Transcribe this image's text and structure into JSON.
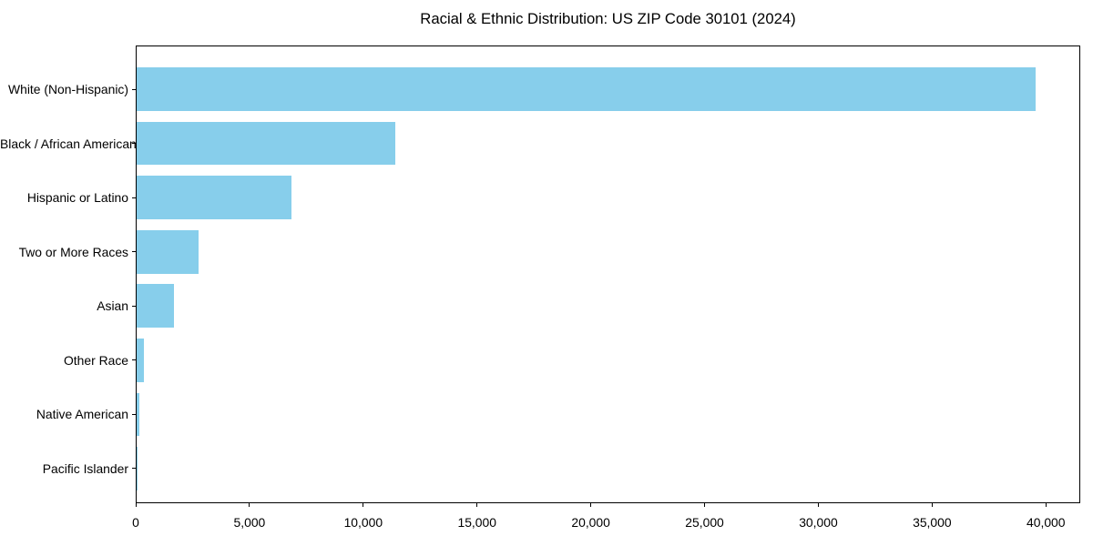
{
  "figure": {
    "background": "#ffffff"
  },
  "chart_data": {
    "type": "bar",
    "orientation": "horizontal",
    "title": "Racial & Ethnic Distribution: US ZIP Code 30101 (2024)",
    "categories": [
      "White (Non-Hispanic)",
      "Black / African American",
      "Hispanic or Latino",
      "Two or More Races",
      "Asian",
      "Other Race",
      "Native American",
      "Pacific Islander"
    ],
    "values": [
      39500,
      11370,
      6800,
      2720,
      1640,
      320,
      110,
      20
    ],
    "xlabel": "",
    "ylabel": "",
    "xlim": [
      0,
      41510
    ],
    "xticks": [
      0,
      5000,
      10000,
      15000,
      20000,
      25000,
      30000,
      35000,
      40000
    ],
    "xtick_labels": [
      "0",
      "5,000",
      "10,000",
      "15,000",
      "20,000",
      "25,000",
      "30,000",
      "35,000",
      "40,000"
    ],
    "bar_color": "#87CEEB",
    "axis_color": "#000000",
    "text_color": "#000000",
    "grid": false,
    "legend": false
  }
}
